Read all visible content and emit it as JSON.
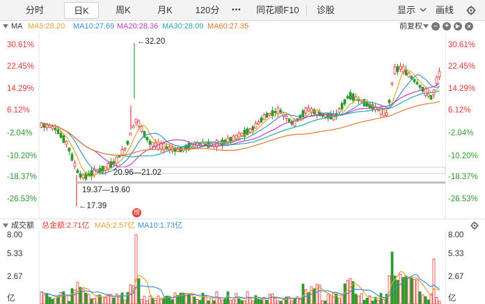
{
  "toolbar": {
    "tabs": [
      {
        "label": "分时"
      },
      {
        "label": "日K"
      },
      {
        "label": "周K"
      },
      {
        "label": "月K"
      },
      {
        "label": "120分"
      }
    ],
    "more_label": "•••",
    "f10_label": "同花顺F10",
    "diagnose_label": "诊股",
    "display_label": "显示",
    "draw_label": "画线"
  },
  "ma": {
    "title": "MA",
    "ma5": "MA5:28.20",
    "ma10": "MA10:27.69",
    "ma20": "MA20:28.36",
    "ma30": "MA30:28.09",
    "ma60": "MA60:27.35",
    "adjust_label": "前复权"
  },
  "price_axis": {
    "labels": [
      "30.61%",
      "22.45%",
      "14.29%",
      "6.12%",
      "-2.04%",
      "-10.20%",
      "-18.37%",
      "-26.53%"
    ]
  },
  "annotations": {
    "high": "←32.20",
    "low": "←17.39",
    "range1": "20.96—21.02",
    "range2": "19.37—19.60",
    "badge": "榜"
  },
  "volume": {
    "title": "成交额",
    "total": "总金额:2.71亿",
    "ma5": "MA5:2.57亿",
    "ma10": "MA10:1.73亿",
    "axis": [
      "8.00",
      "5.33",
      "2.67"
    ],
    "unit": "亿"
  },
  "colors": {
    "up": "#e53935",
    "down": "#2e9a2e",
    "ma5": "#e8a32a",
    "ma10": "#3a8fd8",
    "ma20": "#c23bc2",
    "ma30": "#2aa6a6",
    "ma60": "#e8762a"
  }
}
